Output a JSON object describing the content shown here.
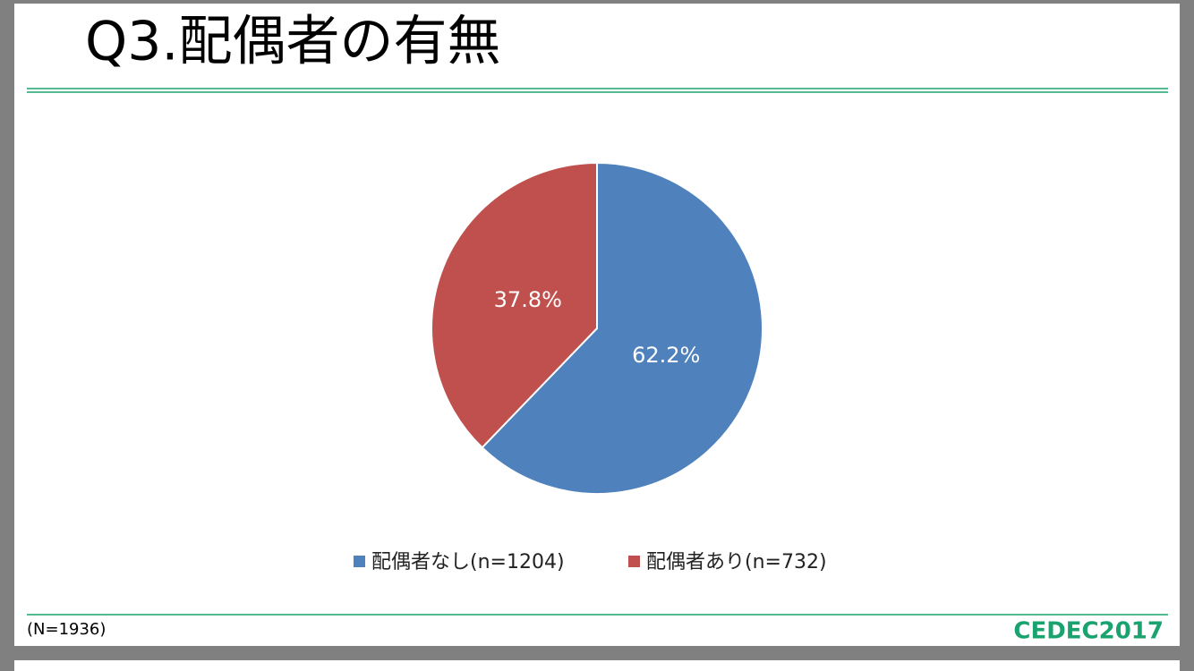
{
  "chart_data": {
    "type": "pie",
    "title": "Q3.配偶者の有無",
    "categories": [
      "配偶者なし(n=1204)",
      "配偶者あり(n=732)"
    ],
    "values": [
      62.2,
      37.8
    ],
    "value_labels": [
      "62.2%",
      "37.8%"
    ],
    "colors": [
      "#4f81bd",
      "#c0504d"
    ],
    "note": "(N=1936)",
    "logo": "CEDEC2017"
  }
}
